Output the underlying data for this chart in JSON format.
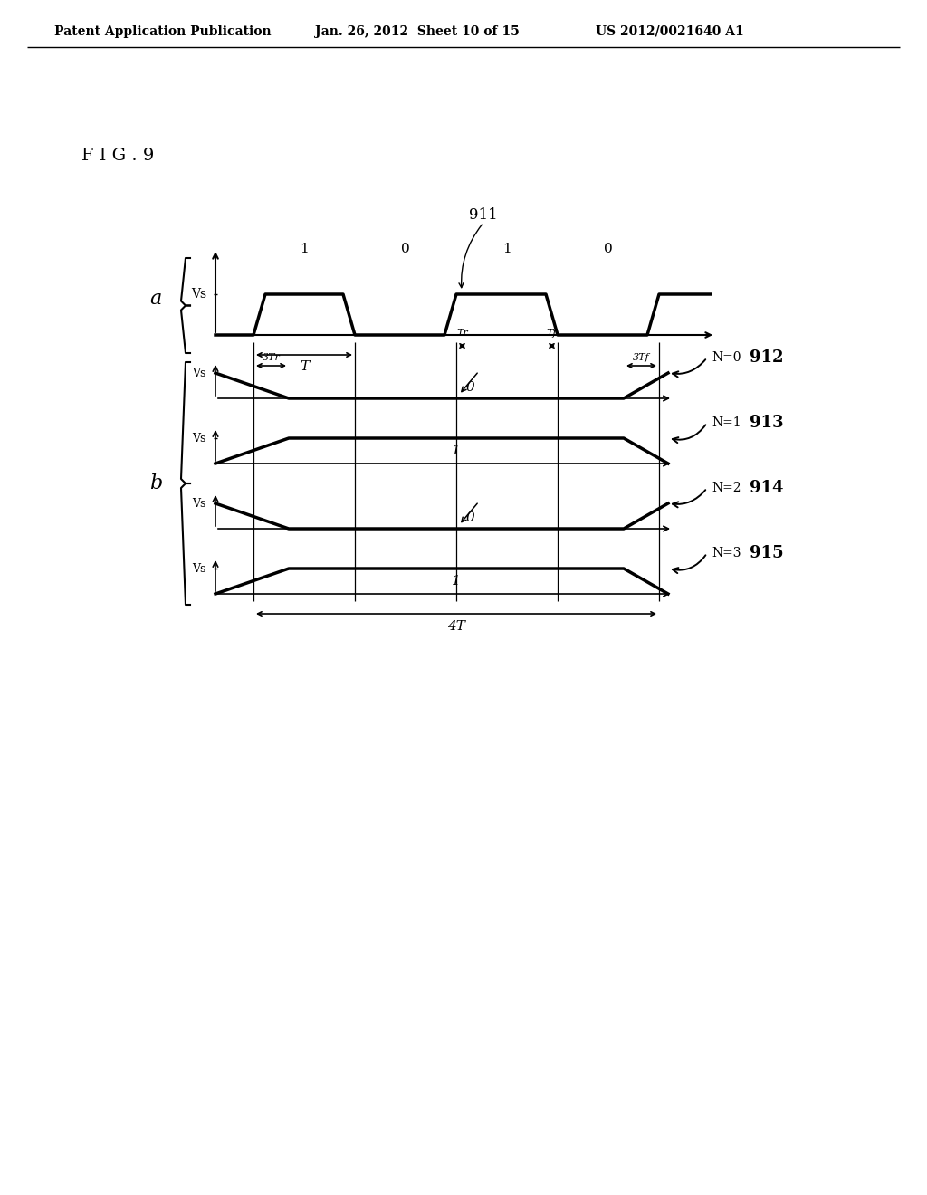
{
  "header_left": "Patent Application Publication",
  "header_mid": "Jan. 26, 2012  Sheet 10 of 15",
  "header_right": "US 2012/0021640 A1",
  "fig_label": "F I G . 9",
  "bg_color": "#ffffff"
}
